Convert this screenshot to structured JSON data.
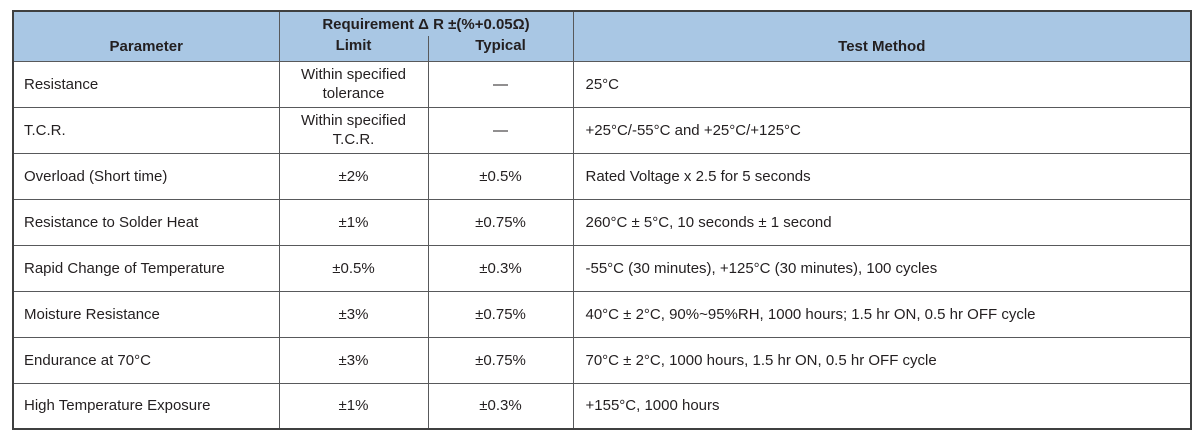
{
  "colors": {
    "header_bg": "#a9c7e4",
    "outer_border": "#3f4040",
    "inner_border": "#58595b",
    "text": "#231f20",
    "page_bg": "#ffffff"
  },
  "table": {
    "header": {
      "parameter": "Parameter",
      "requirement_group": "Requirement Δ R ±(%+0.05Ω)",
      "limit": "Limit",
      "typical": "Typical",
      "test_method": "Test Method"
    },
    "rows": [
      {
        "parameter": "Resistance",
        "limit": "Within specified tolerance",
        "typical": "—",
        "test_method": "25°C"
      },
      {
        "parameter": "T.C.R.",
        "limit": "Within specified T.C.R.",
        "typical": "—",
        "test_method": "+25°C/-55°C and +25°C/+125°C"
      },
      {
        "parameter": "Overload (Short time)",
        "limit": "±2%",
        "typical": "±0.5%",
        "test_method": "Rated Voltage x 2.5 for 5 seconds"
      },
      {
        "parameter": "Resistance to Solder Heat",
        "limit": "±1%",
        "typical": "±0.75%",
        "test_method": "260°C ± 5°C, 10 seconds ± 1 second"
      },
      {
        "parameter": "Rapid Change of Temperature",
        "limit": "±0.5%",
        "typical": "±0.3%",
        "test_method": "-55°C (30 minutes), +125°C (30 minutes), 100 cycles"
      },
      {
        "parameter": "Moisture Resistance",
        "limit": "±3%",
        "typical": "±0.75%",
        "test_method": "40°C ± 2°C, 90%~95%RH, 1000 hours; 1.5 hr ON, 0.5 hr OFF cycle"
      },
      {
        "parameter": "Endurance at 70°C",
        "limit": "±3%",
        "typical": "±0.75%",
        "test_method": "70°C ± 2°C, 1000 hours, 1.5 hr ON, 0.5 hr OFF cycle"
      },
      {
        "parameter": "High Temperature Exposure",
        "limit": "±1%",
        "typical": "±0.3%",
        "test_method": "+155°C, 1000 hours"
      }
    ]
  }
}
